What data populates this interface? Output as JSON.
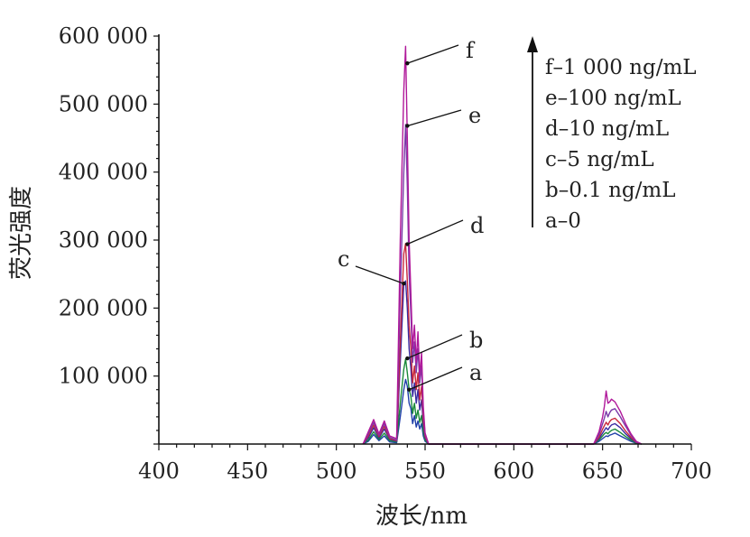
{
  "chart_data": {
    "type": "line",
    "xlabel": "波长/nm",
    "ylabel": "荧光强度",
    "xlim": [
      400,
      700
    ],
    "ylim": [
      0,
      600000
    ],
    "x_ticks": [
      400,
      450,
      500,
      550,
      600,
      650,
      700
    ],
    "x_tick_labels": [
      "400",
      "450",
      "500",
      "550",
      "600",
      "650",
      "700"
    ],
    "y_ticks": [
      100000,
      200000,
      300000,
      400000,
      500000,
      600000
    ],
    "y_tick_labels": [
      "100 000",
      "200 000",
      "300 000",
      "400 000",
      "500 000",
      "600 000"
    ],
    "grid": false,
    "legend": {
      "placement": "top-right",
      "arrow": "up",
      "entries": [
        "f–1 000 ng/mL",
        "e–100 ng/mL",
        "d–10 ng/mL",
        "c–5 ng/mL",
        "b–0.1 ng/mL",
        "a–0"
      ]
    },
    "series": [
      {
        "name": "a",
        "color": "#1f3fa8",
        "x": [
          515,
          518,
          521,
          524,
          527,
          530,
          534,
          536,
          538,
          539,
          540,
          541,
          542,
          543,
          544,
          545,
          546,
          547,
          548,
          549,
          550,
          552,
          556,
          560,
          640,
          645,
          648,
          650,
          651,
          652,
          653,
          654,
          655,
          657,
          660,
          663,
          666,
          669,
          672
        ],
        "y": [
          0,
          4000,
          14000,
          5000,
          12000,
          3000,
          2000,
          40000,
          80000,
          95000,
          85000,
          60000,
          52000,
          30000,
          42000,
          25000,
          34000,
          22000,
          30000,
          12000,
          4000,
          0,
          0,
          0,
          0,
          0,
          4000,
          8000,
          10000,
          12000,
          11000,
          13000,
          14000,
          16000,
          12000,
          8000,
          4000,
          1000,
          0
        ]
      },
      {
        "name": "b",
        "color": "#1a8a3a",
        "x": [
          515,
          518,
          521,
          524,
          527,
          530,
          534,
          536,
          538,
          539,
          540,
          541,
          542,
          543,
          544,
          545,
          546,
          547,
          548,
          549,
          550,
          552,
          556,
          560,
          640,
          645,
          648,
          650,
          651,
          652,
          653,
          654,
          655,
          657,
          660,
          663,
          666,
          669,
          672
        ],
        "y": [
          0,
          6000,
          18000,
          7000,
          16000,
          5000,
          3000,
          60000,
          110000,
          125000,
          105000,
          80000,
          70000,
          45000,
          60000,
          38000,
          50000,
          32000,
          42000,
          18000,
          6000,
          0,
          0,
          0,
          0,
          0,
          6000,
          12000,
          15000,
          17000,
          15000,
          18000,
          20000,
          22000,
          17000,
          11000,
          6000,
          1500,
          0
        ]
      },
      {
        "name": "c",
        "color": "#3a2aa0",
        "x": [
          515,
          518,
          521,
          524,
          527,
          530,
          534,
          536,
          538,
          539,
          540,
          541,
          542,
          543,
          544,
          545,
          546,
          547,
          548,
          549,
          550,
          552,
          556,
          560,
          640,
          645,
          648,
          650,
          651,
          652,
          653,
          654,
          655,
          657,
          660,
          663,
          666,
          669,
          672
        ],
        "y": [
          0,
          9000,
          24000,
          9000,
          22000,
          7000,
          4000,
          120000,
          235000,
          240000,
          200000,
          140000,
          110000,
          70000,
          90000,
          60000,
          80000,
          50000,
          65000,
          28000,
          9000,
          0,
          0,
          0,
          0,
          0,
          8000,
          16000,
          20000,
          24000,
          21000,
          25000,
          28000,
          30000,
          24000,
          15000,
          8000,
          2000,
          0
        ]
      },
      {
        "name": "d",
        "color": "#c8283c",
        "x": [
          515,
          518,
          521,
          524,
          527,
          530,
          534,
          536,
          538,
          539,
          540,
          541,
          542,
          543,
          544,
          545,
          546,
          547,
          548,
          549,
          550,
          552,
          556,
          560,
          640,
          645,
          648,
          650,
          651,
          652,
          653,
          654,
          655,
          657,
          660,
          663,
          666,
          669,
          672
        ],
        "y": [
          0,
          12000,
          28000,
          11000,
          26000,
          8000,
          5000,
          150000,
          280000,
          295000,
          240000,
          175000,
          140000,
          90000,
          115000,
          80000,
          105000,
          65000,
          85000,
          36000,
          11000,
          0,
          0,
          0,
          0,
          0,
          10000,
          22000,
          27000,
          32000,
          28000,
          33000,
          36000,
          38000,
          30000,
          19000,
          10000,
          2500,
          0
        ]
      },
      {
        "name": "e",
        "color": "#7a3aa8",
        "x": [
          515,
          518,
          521,
          524,
          527,
          530,
          534,
          536,
          538,
          539,
          540,
          541,
          542,
          543,
          544,
          545,
          546,
          547,
          548,
          549,
          550,
          552,
          556,
          560,
          640,
          645,
          648,
          650,
          651,
          652,
          653,
          654,
          655,
          657,
          660,
          663,
          666,
          669,
          672
        ],
        "y": [
          0,
          15000,
          32000,
          13000,
          30000,
          10000,
          6000,
          220000,
          400000,
          470000,
          380000,
          250000,
          190000,
          120000,
          150000,
          105000,
          140000,
          90000,
          115000,
          48000,
          14000,
          0,
          0,
          0,
          0,
          0,
          14000,
          30000,
          38000,
          48000,
          40000,
          46000,
          50000,
          52000,
          40000,
          26000,
          13000,
          3000,
          0
        ]
      },
      {
        "name": "f",
        "color": "#b0189a",
        "x": [
          515,
          518,
          521,
          524,
          527,
          530,
          534,
          536,
          538,
          539,
          540,
          541,
          542,
          543,
          544,
          545,
          546,
          547,
          548,
          549,
          550,
          552,
          556,
          560,
          640,
          645,
          648,
          650,
          651,
          652,
          653,
          654,
          655,
          657,
          660,
          663,
          666,
          669,
          672
        ],
        "y": [
          0,
          18000,
          36000,
          15000,
          34000,
          12000,
          8000,
          300000,
          520000,
          585000,
          450000,
          300000,
          220000,
          140000,
          175000,
          120000,
          165000,
          100000,
          135000,
          55000,
          16000,
          0,
          0,
          0,
          0,
          0,
          18000,
          40000,
          55000,
          78000,
          60000,
          62000,
          66000,
          62000,
          48000,
          30000,
          15000,
          4000,
          0
        ]
      }
    ],
    "annotations": [
      {
        "label": "f",
        "x": 540,
        "y": 560000
      },
      {
        "label": "e",
        "x": 540,
        "y": 468000
      },
      {
        "label": "d",
        "x": 540,
        "y": 294000
      },
      {
        "label": "c",
        "x": 538,
        "y": 236000
      },
      {
        "label": "b",
        "x": 540,
        "y": 126000
      },
      {
        "label": "a",
        "x": 541,
        "y": 80000
      }
    ]
  }
}
